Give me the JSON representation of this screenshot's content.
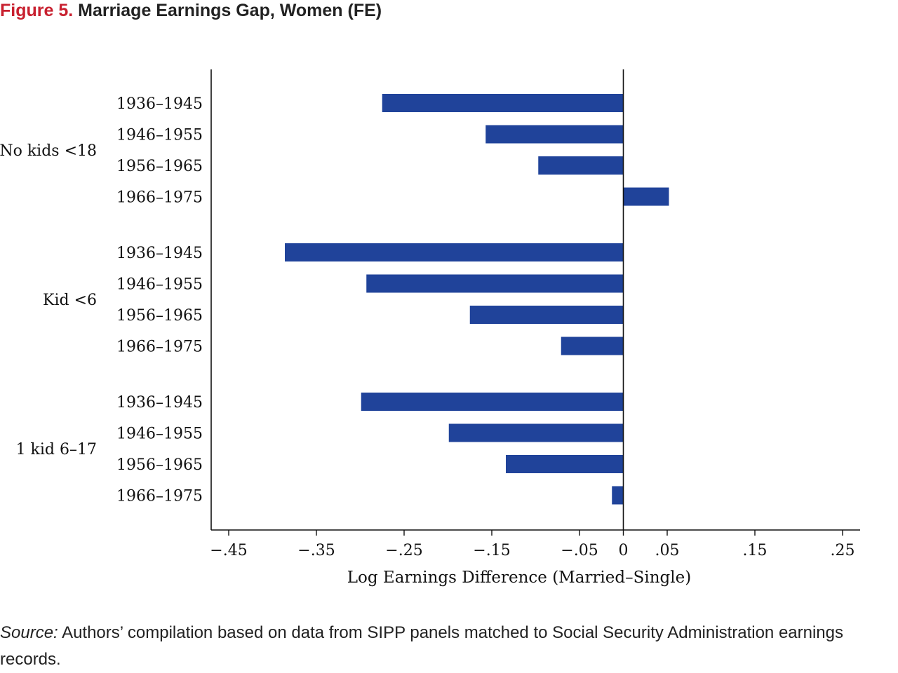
{
  "figure": {
    "label": "Figure 5.",
    "title": "Marriage Earnings Gap, Women (FE)"
  },
  "chart_data": {
    "type": "bar",
    "orientation": "horizontal",
    "xlabel": "Log Earnings Difference (Married–Single)",
    "ylabel": "",
    "xlim": [
      -0.47,
      0.27
    ],
    "xticks": [
      {
        "value": -0.45,
        "label": "−.45"
      },
      {
        "value": -0.35,
        "label": "−.35"
      },
      {
        "value": -0.25,
        "label": "−.25"
      },
      {
        "value": -0.15,
        "label": "−.15"
      },
      {
        "value": -0.05,
        "label": "−.05"
      },
      {
        "value": 0,
        "label": "0"
      },
      {
        "value": 0.05,
        "label": ".05"
      },
      {
        "value": 0.15,
        "label": ".15"
      },
      {
        "value": 0.25,
        "label": ".25"
      }
    ],
    "grid": false,
    "bar_color": "#20439a",
    "groups": [
      {
        "name": "No kids <18",
        "categories": [
          "1936–1945",
          "1946–1955",
          "1956–1965",
          "1966–1975"
        ],
        "values": [
          -0.275,
          -0.157,
          -0.097,
          0.052
        ]
      },
      {
        "name": "Kid <6",
        "categories": [
          "1936–1945",
          "1946–1955",
          "1956–1965",
          "1966–1975"
        ],
        "values": [
          -0.386,
          -0.293,
          -0.175,
          -0.071
        ]
      },
      {
        "name": "1 kid 6–17",
        "categories": [
          "1936–1945",
          "1946–1955",
          "1956–1965",
          "1966–1975"
        ],
        "values": [
          -0.299,
          -0.199,
          -0.134,
          -0.013
        ]
      }
    ]
  },
  "source": {
    "label": "Source:",
    "text": " Authors’ compilation based on data from SIPP panels matched to Social Security Administration earnings records."
  }
}
